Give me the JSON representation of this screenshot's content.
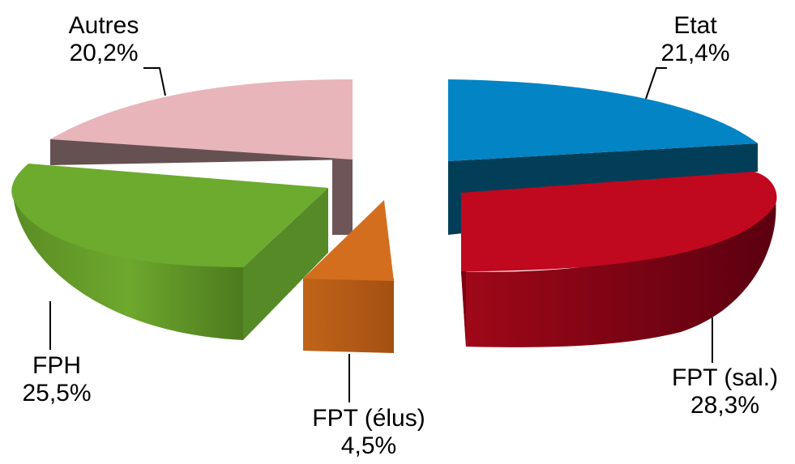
{
  "chart_data": {
    "type": "pie",
    "style": "3d-exploded",
    "slices": [
      {
        "name": "Etat",
        "value": 21.4,
        "label": "21,4%",
        "color": "#0083c3"
      },
      {
        "name": "FPT (sal.)",
        "value": 28.3,
        "label": "28,3%",
        "color": "#c00820"
      },
      {
        "name": "FPT (élus)",
        "value": 4.5,
        "label": "4,5%",
        "color": "#d06a1c"
      },
      {
        "name": "FPH",
        "value": 25.5,
        "label": "25,5%",
        "color": "#6aa22a"
      },
      {
        "name": "Autres",
        "value": 20.2,
        "label": "20,2%",
        "color": "#e8b4bb"
      }
    ]
  }
}
